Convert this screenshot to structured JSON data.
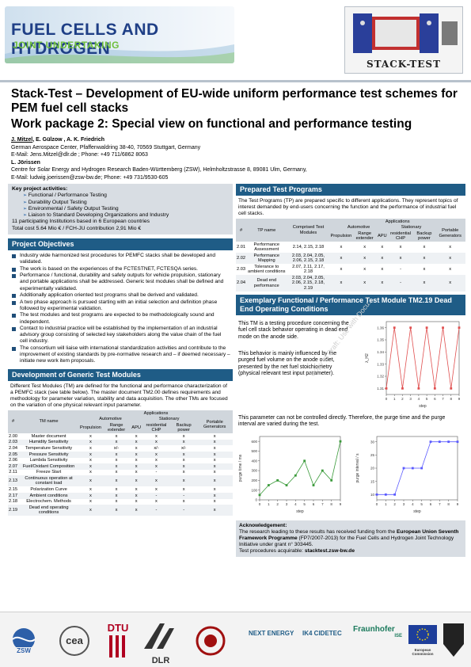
{
  "header": {
    "fch_title": "FUEL CELLS AND HYDROGEN",
    "fch_subtitle": "JOINT UNDERTAKING",
    "stack_logo_text": "STACK-TEST"
  },
  "title": {
    "main": "Stack-Test – Development of EU-wide uniform performance test schemes for PEM fuel cell stacks",
    "sub": "Work package 2: Special view on functional and performance testing"
  },
  "authors": {
    "line1_a": "J. Mitzel",
    "line1_b": ", E. Gülzow , A. K. Friedrich",
    "line2": "German Aerospace Center, Pfaffenwaldring 38-40, 70569 Stuttgart, Germany",
    "line3": "E-Mail: Jens.Mitzel@dlr.de ; Phone: +49 711/6862 8063",
    "line4": "L. Jörissen",
    "line5": "Centre for Solar Energy and Hydrogen Research Baden-Württemberg (ZSW), Helmholtzstrasse 8, 89081 Ulm, Germany,",
    "line6": "E-Mail: ludwig.joerissen@zsw-bw.de; Phone: +49 731/9530-605"
  },
  "key_activities": {
    "heading": "Key project activities:",
    "items": [
      "Functional / Performance Testing",
      "Durability Output Testing",
      "Environmental / Safety Output Testing",
      "Liaison to Standard Developing Organizations and Industry"
    ],
    "institutions": "11 participating Institutions based in 6 European countries",
    "cost": "Total cost 5.64 Mio € / FCH-JU contribution 2,91 Mio €"
  },
  "objectives": {
    "heading": "Project Objectives",
    "items": [
      "Industry wide harmonized test procedures for PEMFC stacks shall be developed and validated.",
      "The work is based on the experiences of the FCTESTNET, FCTESQA series.",
      "Performance / functional, durability and safety outputs for vehicle propulsion, stationary and portable applications shall be addressed. Generic test modules shall be defined and experimentally validated.",
      "Additionally application oriented test programs shall be derived and validated.",
      "A two phase approach is pursued starting with an initial selection and definition phase followed by experimental validation.",
      "The test modules and test programs are expected to be methodologically sound and independent.",
      "Contact to industrial practice will be established by the implementation of an industrial advisory group consisting of selected key stakeholders along the value chain of the fuel cell industry.",
      "The consortium will liaise with international standardization activities and contribute to the improvement of existing standards by pre-normative research and – if deemed necessary – initiate new work item proposals."
    ]
  },
  "generic_modules": {
    "heading": "Development of Generic Test Modules",
    "text": "Different Test Modules (TM) are defined for the functional and performance characterization of a PEMFC stack (see table below). The master document TM2.00 defines requirements and methodology for parameter variation, stability and data acquisition. The other TMs are focused on the variation of one physical relevant input parameter.",
    "table": {
      "h_num": "#",
      "h_name": "TM name",
      "h_applications": "Applications",
      "h_automotive": "Automotive",
      "h_stationary": "Stationary",
      "h_portable": "Portable Generators",
      "h_propulsion": "Propulsion",
      "h_range": "Range extender",
      "h_apu": "APU",
      "h_chp": "residential CHP",
      "h_backup": "Backup power",
      "rows": [
        [
          "2.00",
          "Master document",
          "x",
          "x",
          "x",
          "x",
          "x",
          "x"
        ],
        [
          "2.03",
          "Humidity Sensitivity",
          "x",
          "x",
          "x",
          "x",
          "x",
          "x"
        ],
        [
          "2.04",
          "Temperature Sensitivity",
          "x",
          "x/-",
          "x",
          "x/-",
          "x/-",
          "x"
        ],
        [
          "2.05",
          "Pressure Sensitivity",
          "x",
          "x",
          "x",
          "x",
          "x",
          "x"
        ],
        [
          "2.06",
          "Lambda Sensitivity",
          "x",
          "x",
          "x",
          "x",
          "x",
          "x"
        ],
        [
          "2.07",
          "Fuel/Oxidant Composition",
          "x",
          "x",
          "x",
          "x",
          "x",
          "x"
        ],
        [
          "2.11",
          "Freeze Start",
          "x",
          "x",
          "x",
          "-",
          "x",
          "x"
        ],
        [
          "2.13",
          "Continuous operation at constant load",
          "x",
          "x",
          "x",
          "x",
          "x",
          "x"
        ],
        [
          "2.15",
          "Polarization Curve",
          "x",
          "x",
          "x",
          "x",
          "x",
          "x"
        ],
        [
          "2.17",
          "Ambient conditions",
          "x",
          "x",
          "x",
          "-",
          "-",
          "x"
        ],
        [
          "2.18",
          "Electrochem. Methods",
          "x",
          "x",
          "x",
          "x",
          "x",
          "x"
        ],
        [
          "2.19",
          "Dead end operating conditions",
          "x",
          "x",
          "x",
          "-",
          "-",
          "x"
        ]
      ]
    }
  },
  "test_programs": {
    "heading": "Prepared Test Programs",
    "text": "The Test Programs (TP) are prepared specific to different applications. They represent topics of interest demanded by end-users concerning the function and the performance of industrial fuel cell stacks.",
    "table": {
      "h_num": "#",
      "h_name": "TP name",
      "h_modules": "Comprised Test Modules",
      "h_applications": "Applications",
      "h_automotive": "Automotive",
      "h_stationary": "Stationary",
      "h_portable": "Portable Generators",
      "h_propulsion": "Propulsion",
      "h_range": "Range extender",
      "h_apu": "APU",
      "h_chp": "residential CHP",
      "h_backup": "Backup power",
      "rows": [
        [
          "2.01",
          "Performance Assessment",
          "2.14, 2.15, 2.18",
          "x",
          "x",
          "x",
          "x",
          "x",
          "x"
        ],
        [
          "2.02",
          "Performance Mapping",
          "2.03, 2.04, 2.05, 2.06, 2.15, 2.18",
          "x",
          "x",
          "x",
          "x",
          "x",
          "x"
        ],
        [
          "2.03",
          "Tolerance to ambient conditions",
          "2.07, 2.11, 2.17, 2.18",
          "x",
          "x",
          "x",
          "-",
          "x",
          "x"
        ],
        [
          "2.04",
          "Dead end performance",
          "2.03, 2.04, 2.05, 2.06, 2.15, 2.18, 2.19",
          "x",
          "x",
          "x",
          "-",
          "x",
          "x"
        ]
      ]
    }
  },
  "example": {
    "heading": "Exemplary Functional / Performance Test Module TM2.19 Dead End Operating Conditions",
    "text1": "This TM is a testing procedure concerning the fuel cell stack behavior operating in dead end mode on the anode side.",
    "text2": "This behavior is mainly influenced by the purged fuel volume on the anode outlet, presented by the net fuel stoichiometry (physical relevant test input parameter).",
    "text3": "This parameter can not be controlled directly. Therefore, the purge time and the purge interval are varied during the test."
  },
  "watermark": "Copy of Draft: Use with Docu...",
  "acknowledgement": {
    "heading": "Acknowledgement:",
    "text_a": "The research leading to these results has received funding from the ",
    "text_b": "European Union Seventh Framework Programme",
    "text_c": " (FP7/2007-2013) for the Fuel Cells and Hydrogen Joint Technology Initiative under grant n° 303445.",
    "text_d": "Test procedures acquirable: ",
    "text_e": "stacktest.zsw-bw.de"
  },
  "footer_logos": {
    "zsw": "ZSW",
    "cea": "cea",
    "dtu": "DTU",
    "dlr": "DLR",
    "nextenergy": "NEXT ENERGY",
    "ik4": "IK4 CIDETEC",
    "fraunhofer": "Fraunhofer",
    "ise": "ISE",
    "eu": "European Commission"
  },
  "chart_data": [
    {
      "type": "line",
      "x": [
        0,
        1,
        2,
        3,
        4,
        5,
        6,
        7,
        8,
        9
      ],
      "series": [
        {
          "values": [
            1.31,
            1.36,
            1.31,
            1.36,
            1.31,
            1.36,
            1.31,
            1.36,
            1.31,
            1.36
          ]
        }
      ],
      "xlabel": "step",
      "ylabel": "λ_H2",
      "yticks": [
        1.31,
        1.32,
        1.33,
        1.34,
        1.35,
        1.36
      ],
      "ylim": [
        1.305,
        1.365
      ],
      "xlim": [
        0,
        9
      ],
      "color": "#e05050"
    },
    {
      "type": "line",
      "x": [
        0,
        1,
        2,
        3,
        4,
        5,
        6,
        7,
        8,
        9
      ],
      "series": [
        {
          "values": [
            50,
            150,
            200,
            150,
            250,
            400,
            150,
            300,
            200,
            600
          ]
        }
      ],
      "xlabel": "step",
      "ylabel": "purge time / ms",
      "yticks": [
        0,
        100,
        200,
        300,
        400,
        500,
        600
      ],
      "ylim": [
        0,
        650
      ],
      "xlim": [
        0,
        9
      ],
      "color": "#3a9a3a"
    },
    {
      "type": "line",
      "x": [
        0,
        1,
        2,
        3,
        4,
        5,
        6,
        7,
        8,
        9
      ],
      "series": [
        {
          "values": [
            10,
            10,
            10,
            20,
            20,
            20,
            30,
            30,
            30,
            30
          ]
        }
      ],
      "xlabel": "step",
      "ylabel": "purge interval / s",
      "yticks": [
        10,
        15,
        20,
        25,
        30
      ],
      "ylim": [
        8,
        32
      ],
      "xlim": [
        0,
        9
      ],
      "color": "#5a5aff"
    }
  ]
}
